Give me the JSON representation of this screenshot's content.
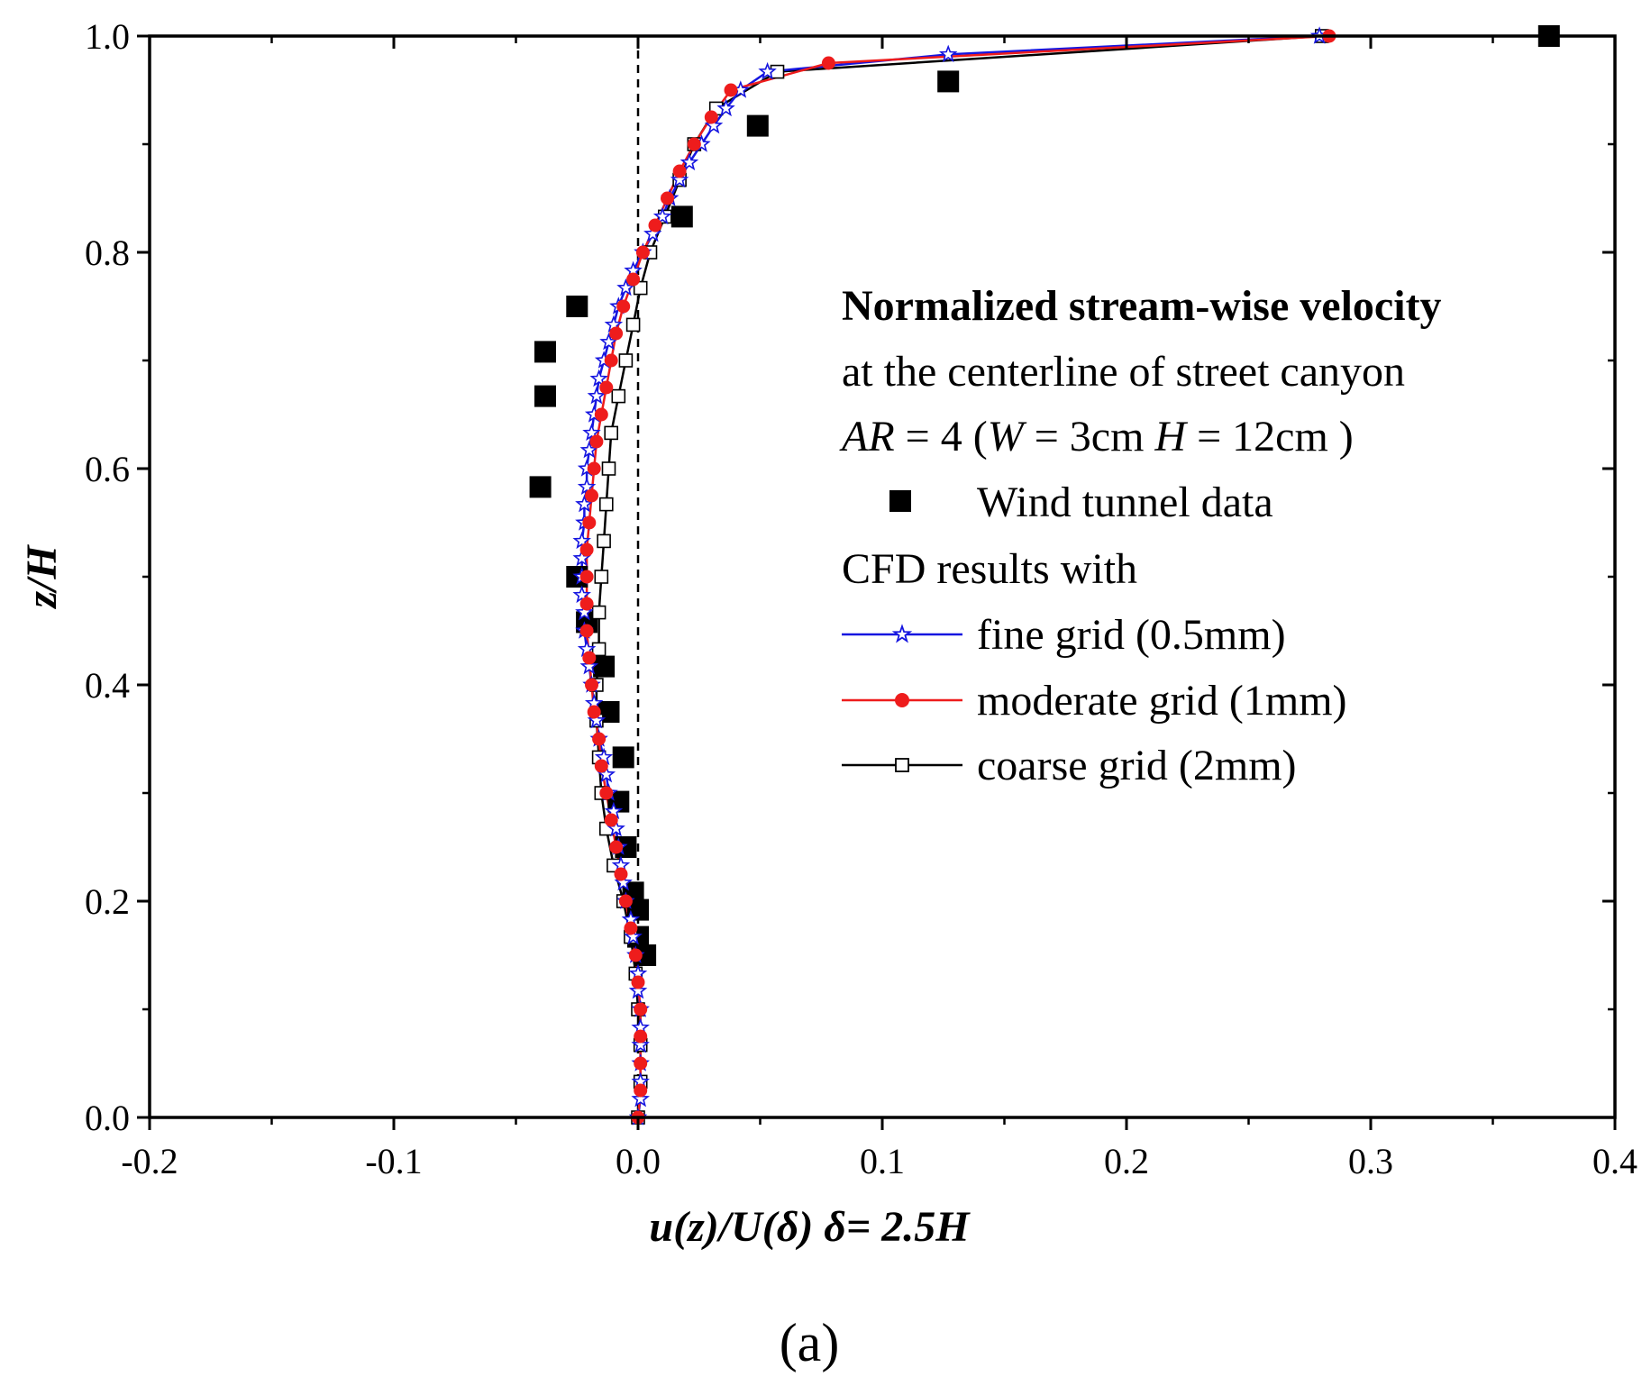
{
  "chart_data": {
    "type": "scatter",
    "title": "",
    "panel_label": "(a)",
    "xlabel": "u(z)/U(δ) δ= 2.5H",
    "ylabel": "z/H",
    "xlim": [
      -0.2,
      0.4
    ],
    "ylim": [
      0.0,
      1.0
    ],
    "xticks": [
      -0.2,
      -0.1,
      0.0,
      0.1,
      0.2,
      0.3,
      0.4
    ],
    "yticks": [
      0.0,
      0.2,
      0.4,
      0.6,
      0.8,
      1.0
    ],
    "xtick_labels": [
      "-0.2",
      "-0.1",
      "0.0",
      "0.1",
      "0.2",
      "0.3",
      "0.4"
    ],
    "ytick_labels": [
      "0.0",
      "0.2",
      "0.4",
      "0.6",
      "0.8",
      "1.0"
    ],
    "reference_line_x": 0.0,
    "legend": {
      "title": "Normalized stream-wise velocity",
      "lines": [
        "at the centerline of street canyon",
        "AR = 4 (W = 3cm H = 12cm )"
      ],
      "cfd_header": "CFD results with",
      "entries": [
        "Wind tunnel data",
        "fine grid (0.5mm)",
        "moderate grid (1mm)",
        "coarse grid (2mm)"
      ]
    },
    "ar_line": {
      "ar": "AR",
      "eq1": " = 4 (",
      "w": "W",
      "eq2": " = 3cm ",
      "h": "H",
      "eq3": " = 12cm )"
    },
    "series": [
      {
        "name": "Wind tunnel data",
        "marker": "filled-square",
        "color": "#000000",
        "points": [
          [
            -0.04,
            0.583
          ],
          [
            -0.038,
            0.667
          ],
          [
            -0.038,
            0.708
          ],
          [
            -0.025,
            0.75
          ],
          [
            -0.025,
            0.5
          ],
          [
            -0.021,
            0.458
          ],
          [
            -0.014,
            0.417
          ],
          [
            -0.012,
            0.375
          ],
          [
            -0.006,
            0.333
          ],
          [
            -0.008,
            0.292
          ],
          [
            -0.005,
            0.25
          ],
          [
            -0.002,
            0.208
          ],
          [
            0.0,
            0.192
          ],
          [
            0.0,
            0.167
          ],
          [
            0.003,
            0.15
          ],
          [
            0.018,
            0.833
          ],
          [
            0.049,
            0.917
          ],
          [
            0.127,
            0.958
          ],
          [
            0.373,
            1.0
          ]
        ]
      },
      {
        "name": "fine grid (0.5mm)",
        "marker": "open-star",
        "color": "#1515e0",
        "points": [
          [
            0.0,
            0.0
          ],
          [
            0.001,
            0.017
          ],
          [
            0.001,
            0.033
          ],
          [
            0.001,
            0.05
          ],
          [
            0.001,
            0.067
          ],
          [
            0.001,
            0.083
          ],
          [
            0.001,
            0.1
          ],
          [
            0.0,
            0.117
          ],
          [
            0.0,
            0.133
          ],
          [
            -0.001,
            0.15
          ],
          [
            -0.002,
            0.167
          ],
          [
            -0.003,
            0.183
          ],
          [
            -0.005,
            0.2
          ],
          [
            -0.006,
            0.217
          ],
          [
            -0.007,
            0.233
          ],
          [
            -0.008,
            0.25
          ],
          [
            -0.009,
            0.267
          ],
          [
            -0.01,
            0.283
          ],
          [
            -0.012,
            0.3
          ],
          [
            -0.013,
            0.317
          ],
          [
            -0.014,
            0.333
          ],
          [
            -0.016,
            0.35
          ],
          [
            -0.017,
            0.367
          ],
          [
            -0.018,
            0.383
          ],
          [
            -0.019,
            0.4
          ],
          [
            -0.02,
            0.417
          ],
          [
            -0.021,
            0.433
          ],
          [
            -0.022,
            0.45
          ],
          [
            -0.022,
            0.467
          ],
          [
            -0.023,
            0.483
          ],
          [
            -0.023,
            0.5
          ],
          [
            -0.023,
            0.517
          ],
          [
            -0.023,
            0.533
          ],
          [
            -0.022,
            0.55
          ],
          [
            -0.022,
            0.567
          ],
          [
            -0.021,
            0.583
          ],
          [
            -0.021,
            0.6
          ],
          [
            -0.02,
            0.617
          ],
          [
            -0.019,
            0.633
          ],
          [
            -0.018,
            0.65
          ],
          [
            -0.017,
            0.667
          ],
          [
            -0.016,
            0.683
          ],
          [
            -0.014,
            0.7
          ],
          [
            -0.012,
            0.717
          ],
          [
            -0.01,
            0.733
          ],
          [
            -0.008,
            0.75
          ],
          [
            -0.005,
            0.767
          ],
          [
            -0.002,
            0.783
          ],
          [
            0.002,
            0.8
          ],
          [
            0.006,
            0.817
          ],
          [
            0.01,
            0.833
          ],
          [
            0.013,
            0.85
          ],
          [
            0.017,
            0.867
          ],
          [
            0.021,
            0.883
          ],
          [
            0.026,
            0.9
          ],
          [
            0.031,
            0.917
          ],
          [
            0.036,
            0.933
          ],
          [
            0.042,
            0.95
          ],
          [
            0.053,
            0.967
          ],
          [
            0.127,
            0.983
          ],
          [
            0.279,
            1.0
          ]
        ]
      },
      {
        "name": "moderate grid (1mm)",
        "marker": "filled-circle",
        "color": "#ee1c1c",
        "points": [
          [
            0.0,
            0.0
          ],
          [
            0.001,
            0.025
          ],
          [
            0.001,
            0.05
          ],
          [
            0.001,
            0.075
          ],
          [
            0.001,
            0.1
          ],
          [
            0.0,
            0.125
          ],
          [
            -0.001,
            0.15
          ],
          [
            -0.003,
            0.175
          ],
          [
            -0.005,
            0.2
          ],
          [
            -0.007,
            0.225
          ],
          [
            -0.009,
            0.25
          ],
          [
            -0.011,
            0.275
          ],
          [
            -0.013,
            0.3
          ],
          [
            -0.015,
            0.325
          ],
          [
            -0.016,
            0.35
          ],
          [
            -0.018,
            0.375
          ],
          [
            -0.019,
            0.4
          ],
          [
            -0.02,
            0.425
          ],
          [
            -0.021,
            0.45
          ],
          [
            -0.021,
            0.475
          ],
          [
            -0.021,
            0.5
          ],
          [
            -0.021,
            0.525
          ],
          [
            -0.02,
            0.55
          ],
          [
            -0.019,
            0.575
          ],
          [
            -0.018,
            0.6
          ],
          [
            -0.017,
            0.625
          ],
          [
            -0.015,
            0.65
          ],
          [
            -0.013,
            0.675
          ],
          [
            -0.011,
            0.7
          ],
          [
            -0.009,
            0.725
          ],
          [
            -0.006,
            0.75
          ],
          [
            -0.002,
            0.775
          ],
          [
            0.002,
            0.8
          ],
          [
            0.007,
            0.825
          ],
          [
            0.012,
            0.85
          ],
          [
            0.017,
            0.875
          ],
          [
            0.023,
            0.9
          ],
          [
            0.03,
            0.925
          ],
          [
            0.038,
            0.95
          ],
          [
            0.078,
            0.975
          ],
          [
            0.283,
            1.0
          ]
        ]
      },
      {
        "name": "coarse grid (2mm)",
        "marker": "open-square",
        "color": "#000000",
        "points": [
          [
            0.0,
            0.0
          ],
          [
            0.001,
            0.033
          ],
          [
            0.001,
            0.067
          ],
          [
            0.0,
            0.1
          ],
          [
            -0.001,
            0.133
          ],
          [
            -0.003,
            0.167
          ],
          [
            -0.006,
            0.2
          ],
          [
            -0.01,
            0.233
          ],
          [
            -0.013,
            0.267
          ],
          [
            -0.015,
            0.3
          ],
          [
            -0.016,
            0.333
          ],
          [
            -0.017,
            0.367
          ],
          [
            -0.017,
            0.4
          ],
          [
            -0.016,
            0.433
          ],
          [
            -0.016,
            0.467
          ],
          [
            -0.015,
            0.5
          ],
          [
            -0.014,
            0.533
          ],
          [
            -0.013,
            0.567
          ],
          [
            -0.012,
            0.6
          ],
          [
            -0.011,
            0.633
          ],
          [
            -0.008,
            0.667
          ],
          [
            -0.005,
            0.7
          ],
          [
            -0.002,
            0.733
          ],
          [
            0.001,
            0.767
          ],
          [
            0.005,
            0.8
          ],
          [
            0.011,
            0.833
          ],
          [
            0.017,
            0.867
          ],
          [
            0.023,
            0.9
          ],
          [
            0.032,
            0.933
          ],
          [
            0.057,
            0.967
          ],
          [
            0.28,
            1.0
          ]
        ]
      }
    ]
  }
}
